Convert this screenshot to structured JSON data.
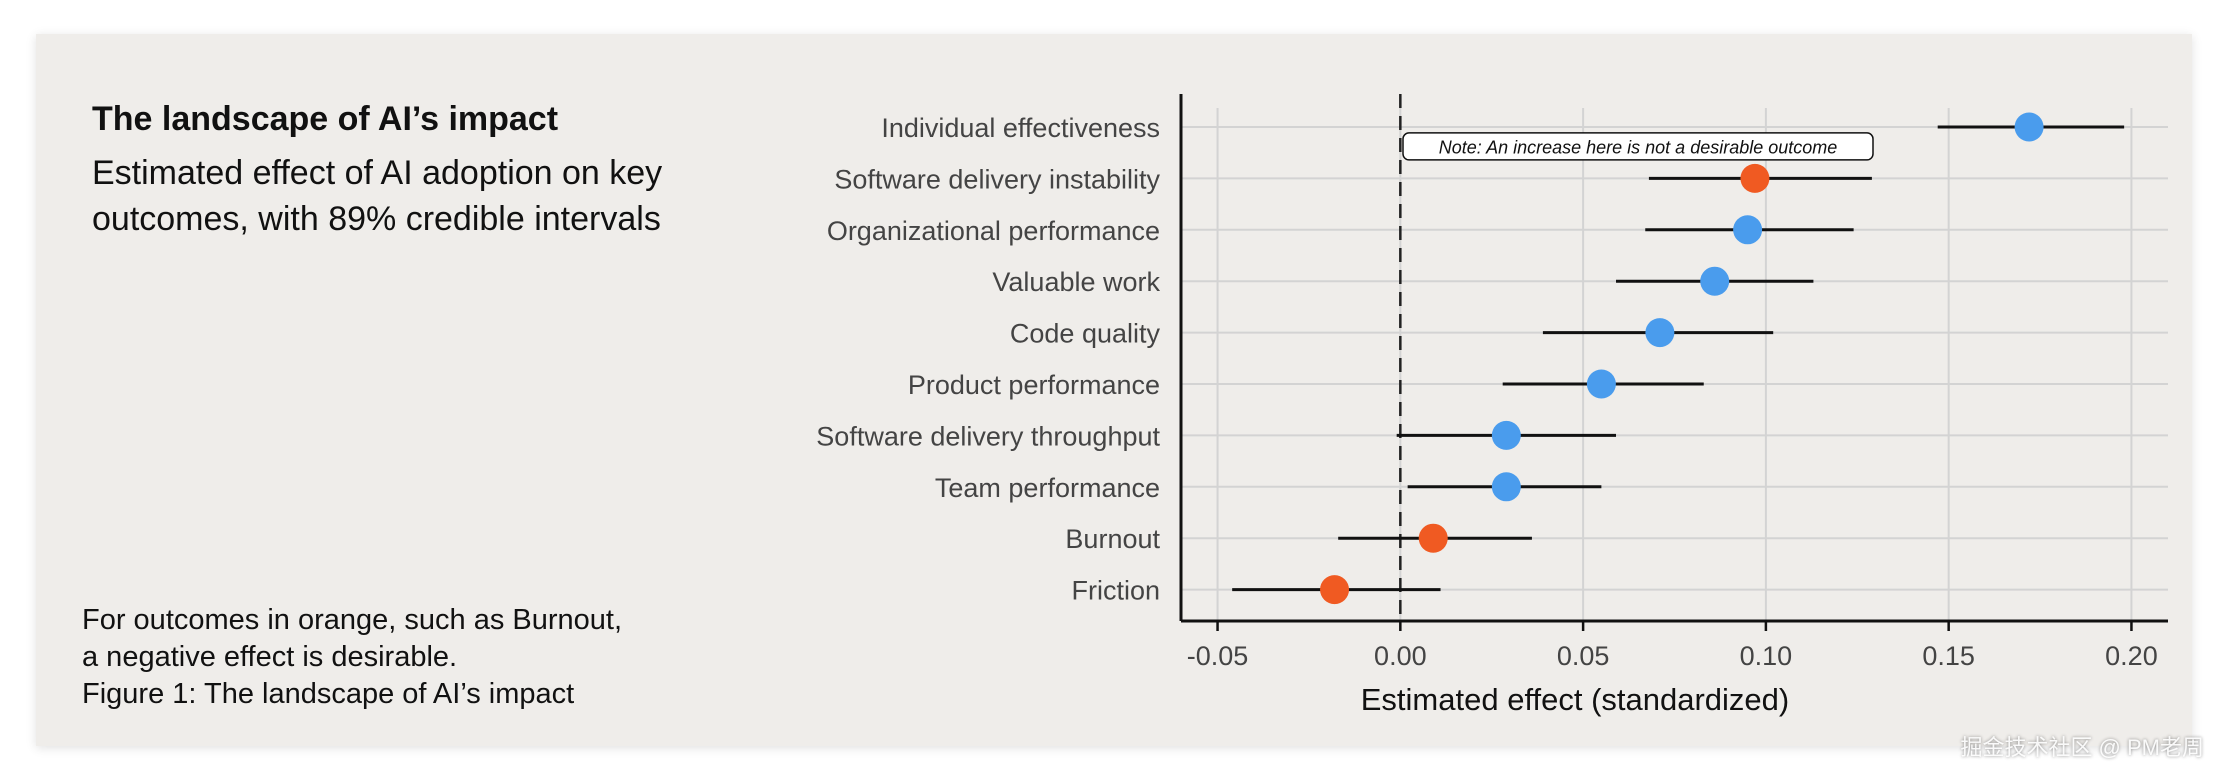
{
  "figure": {
    "title": "The landscape of AI’s impact",
    "subtitle": "Estimated effect of AI adoption on key outcomes, with 89% credible intervals",
    "notes": [
      "For outcomes in orange, such as Burnout,",
      "a negative effect is desirable.",
      "Figure 1: The landscape of AI’s impact"
    ]
  },
  "colors": {
    "positive": "#4a9ced",
    "negative": "#f05a22",
    "grid": "#d3d3d3",
    "axis": "#111111",
    "ticklabel": "#444444"
  },
  "chart_data": {
    "type": "scatter",
    "subtype": "dot-and-whisker",
    "xlabel": "Estimated effect (standardized)",
    "ylabel": "",
    "xlim": [
      -0.06,
      0.21
    ],
    "xticks": [
      -0.05,
      0.0,
      0.05,
      0.1,
      0.15,
      0.2
    ],
    "xtick_labels": [
      "-0.05",
      "0.00",
      "0.05",
      "0.10",
      "0.15",
      "0.20"
    ],
    "reference_line": {
      "x": 0,
      "style": "dashed"
    },
    "grid": true,
    "annotation": {
      "text": "Note: An increase here is not a desirable outcome",
      "category": "Software delivery instability"
    },
    "categories": [
      "Individual effectiveness",
      "Software delivery instability",
      "Organizational performance",
      "Valuable work",
      "Code quality",
      "Product performance",
      "Software delivery throughput",
      "Team performance",
      "Burnout",
      "Friction"
    ],
    "estimates": [
      0.172,
      0.097,
      0.095,
      0.086,
      0.071,
      0.055,
      0.029,
      0.029,
      0.009,
      -0.018
    ],
    "ci_low": [
      0.147,
      0.068,
      0.067,
      0.059,
      0.039,
      0.028,
      -0.001,
      0.002,
      -0.017,
      -0.046
    ],
    "ci_high": [
      0.198,
      0.129,
      0.124,
      0.113,
      0.102,
      0.083,
      0.059,
      0.055,
      0.036,
      0.011
    ],
    "negative_desirable": [
      false,
      true,
      false,
      false,
      false,
      false,
      false,
      false,
      true,
      true
    ]
  },
  "watermark": "掘金技术社区 @ PM老周"
}
